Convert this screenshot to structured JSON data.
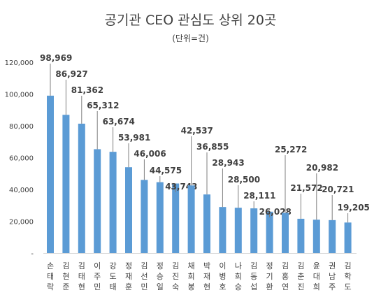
{
  "title": "공기관 CEO 관심도 상위 20곳",
  "subtitle": "(단위=건)",
  "chart_data": {
    "type": "bar",
    "title": "공기관 CEO 관심도 상위 20곳",
    "unit": "(단위=건)",
    "categories": [
      "손태락",
      "김현준",
      "김태현",
      "이주민",
      "강도태",
      "정재훈",
      "김선민",
      "정승일",
      "김진숙",
      "채희봉",
      "박재현",
      "이병호",
      "나희승",
      "김동섭",
      "정기환",
      "김홍연",
      "김춘진",
      "윤대희",
      "권남주",
      "김학도"
    ],
    "values": [
      98969,
      86927,
      81362,
      65312,
      63674,
      53981,
      46006,
      44575,
      43743,
      42537,
      36855,
      28943,
      28500,
      28111,
      26028,
      25272,
      21572,
      20982,
      20721,
      19205
    ],
    "value_labels": [
      "98,969",
      "86,927",
      "81,362",
      "65,312",
      "63,674",
      "53,981",
      "46,006",
      "44,575",
      "43,743",
      "42,537",
      "36,855",
      "28,943",
      "28,500",
      "28,111",
      "26,028",
      "25,272",
      "21,572",
      "20,982",
      "20,721",
      "19,205"
    ],
    "y_ticks": [
      "-",
      "20,000",
      "40,000",
      "60,000",
      "80,000",
      "100,000",
      "120,000"
    ],
    "ylim": [
      0,
      120000
    ],
    "bar_color": "#5b9bd5",
    "leader_color": "#7f7f7f",
    "grid": false
  }
}
